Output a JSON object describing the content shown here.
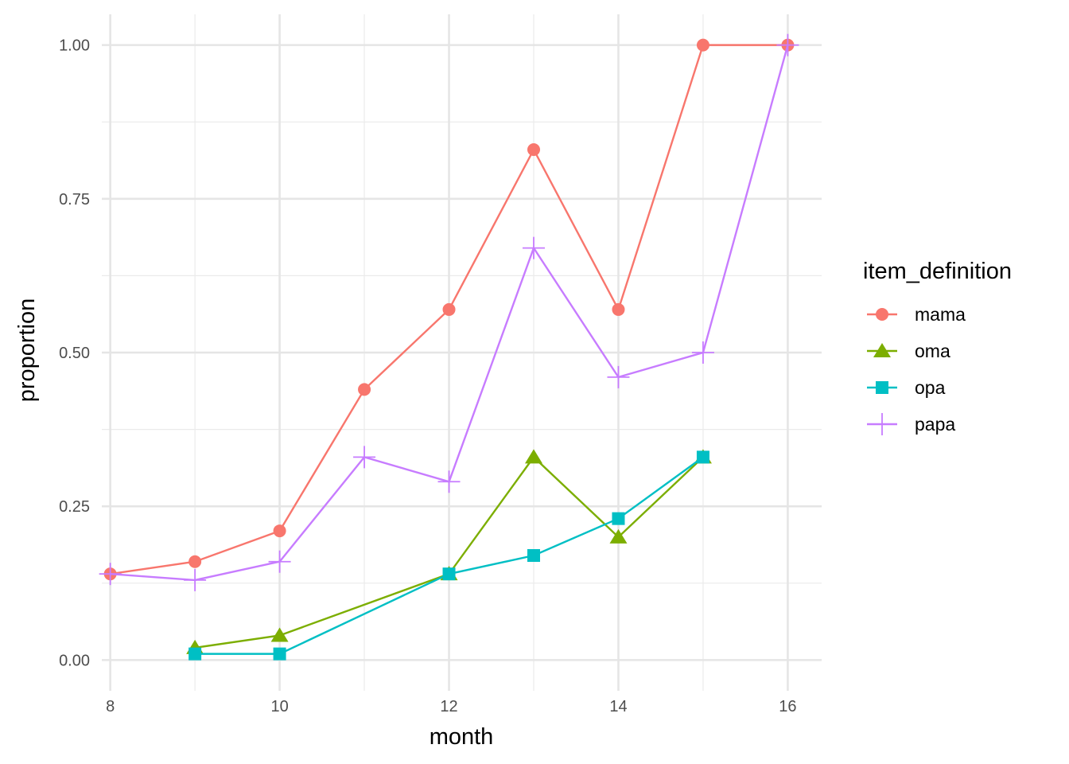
{
  "chart_data": {
    "type": "line",
    "title": "",
    "xlabel": "month",
    "ylabel": "proportion",
    "xlim": [
      7.9,
      16.4
    ],
    "ylim": [
      -0.05,
      1.05
    ],
    "x_ticks": [
      8,
      10,
      12,
      14,
      16
    ],
    "x_tick_labels": [
      "8",
      "10",
      "12",
      "14",
      "16"
    ],
    "y_ticks": [
      0,
      0.25,
      0.5,
      0.75,
      1
    ],
    "y_tick_labels": [
      "0.00",
      "0.25",
      "0.50",
      "0.75",
      "1.00"
    ],
    "grid": true,
    "legend": {
      "title": "item_definition",
      "placement": "right"
    },
    "series": [
      {
        "name": "mama",
        "color": "#F8766D",
        "marker": "circle",
        "x": [
          8,
          9,
          10,
          11,
          12,
          13,
          14,
          15,
          16
        ],
        "y": [
          0.14,
          0.16,
          0.21,
          0.44,
          0.57,
          0.83,
          0.57,
          1.0,
          1.0
        ]
      },
      {
        "name": "oma",
        "color": "#7CAE00",
        "marker": "triangle",
        "x": [
          9,
          10,
          12,
          13,
          14,
          15
        ],
        "y": [
          0.02,
          0.04,
          0.14,
          0.33,
          0.2,
          0.33
        ]
      },
      {
        "name": "opa",
        "color": "#00BFC4",
        "marker": "square",
        "x": [
          9,
          10,
          12,
          13,
          14,
          15
        ],
        "y": [
          0.01,
          0.01,
          0.14,
          0.17,
          0.23,
          0.33
        ]
      },
      {
        "name": "papa",
        "color": "#C77CFF",
        "marker": "plus",
        "x": [
          8,
          9,
          10,
          11,
          12,
          13,
          14,
          15,
          16
        ],
        "y": [
          0.14,
          0.13,
          0.16,
          0.33,
          0.29,
          0.67,
          0.46,
          0.5,
          1.0
        ]
      }
    ]
  }
}
